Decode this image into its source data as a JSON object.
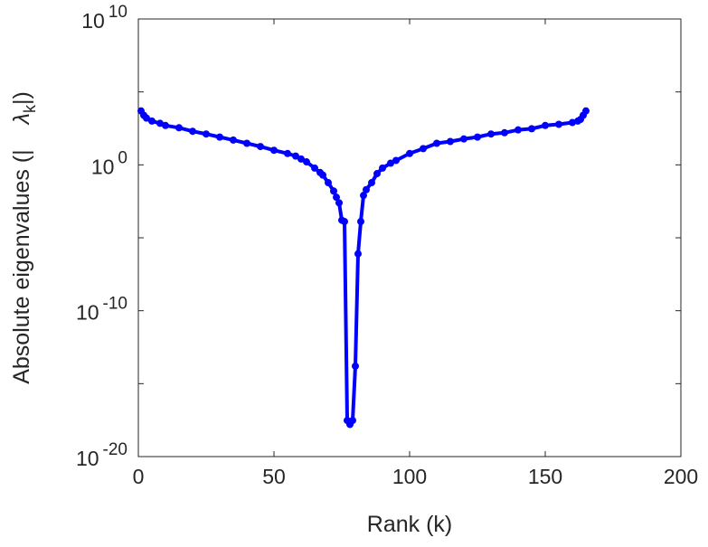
{
  "chart_data": {
    "type": "line",
    "title": "",
    "xlabel": "Rank (k)",
    "ylabel_prefix": "Absolute eigenvalues (|",
    "ylabel_lambda": "λ",
    "ylabel_sub": "k",
    "ylabel_suffix": "|)",
    "xlim": [
      0,
      200
    ],
    "ylim": [
      1e-20,
      10000000000.0
    ],
    "yscale": "log",
    "xticks": [
      0,
      50,
      100,
      150,
      200
    ],
    "xtick_labels": [
      "0",
      "50",
      "100",
      "150",
      "200"
    ],
    "yticks_exp": [
      -20,
      -10,
      0,
      10
    ],
    "ytick_base": "10",
    "ytick_exp_labels": [
      "-20",
      "-10",
      "0",
      "10"
    ],
    "grid": false,
    "series": [
      {
        "name": "eigenvalues",
        "color": "#0000ff",
        "marker": "circle",
        "x": [
          1,
          2,
          3,
          5,
          8,
          10,
          15,
          20,
          25,
          30,
          35,
          40,
          45,
          50,
          55,
          58,
          60,
          62,
          65,
          67,
          68,
          70,
          72,
          73,
          74,
          75,
          76,
          77,
          78,
          79,
          80,
          81,
          82,
          83,
          84,
          86,
          88,
          90,
          93,
          95,
          100,
          105,
          110,
          115,
          120,
          125,
          130,
          135,
          140,
          145,
          150,
          155,
          160,
          162,
          163,
          164,
          165
        ],
        "y": [
          5000.0,
          2500.0,
          1600.0,
          1000.0,
          700.0,
          500.0,
          350.0,
          200.0,
          130.0,
          80.0,
          50.0,
          30.0,
          18.0,
          10.0,
          6,
          4,
          2.5,
          1.6,
          0.6,
          0.3,
          0.2,
          0.06,
          0.016,
          0.006,
          0.0025,
          0.00016,
          0.00013,
          3e-18,
          1.6e-18,
          3e-18,
          1.6e-14,
          8e-07,
          0.00013,
          0.008,
          0.02,
          0.06,
          0.25,
          0.6,
          1.3,
          2,
          6,
          13.0,
          30.0,
          40.0,
          60.0,
          80.0,
          130.0,
          160.0,
          250.0,
          300.0,
          500.0,
          600.0,
          800.0,
          1000.0,
          1300.0,
          2500.0,
          5000.0
        ]
      }
    ]
  }
}
